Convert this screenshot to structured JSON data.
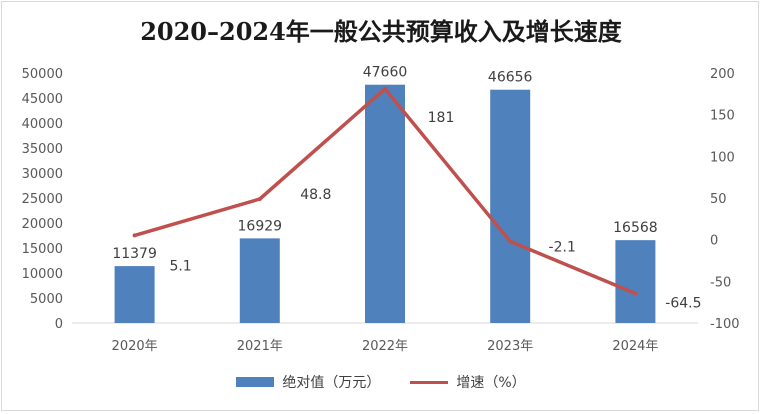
{
  "chart_data": {
    "type": "bar",
    "title": "2020–2024年一般公共预算收入及增长速度",
    "categories": [
      "2020年",
      "2021年",
      "2022年",
      "2023年",
      "2024年"
    ],
    "series": [
      {
        "name": "绝对值（万元）",
        "type": "bar",
        "axis": "left",
        "color": "#4f81bd",
        "values": [
          11379,
          16929,
          47660,
          46656,
          16568
        ],
        "labels": [
          "11379",
          "16929",
          "47660",
          "46656",
          "16568"
        ]
      },
      {
        "name": "增速（%）",
        "type": "line",
        "axis": "right",
        "color": "#c0504d",
        "values": [
          5.1,
          48.8,
          181,
          -2.1,
          -64.5
        ],
        "labels": [
          "5.1",
          "48.8",
          "181",
          "-2.1",
          "-64.5"
        ]
      }
    ],
    "y_left": {
      "ylim": [
        0,
        50000
      ],
      "ticks": [
        "0",
        "5000",
        "10000",
        "15000",
        "20000",
        "25000",
        "30000",
        "35000",
        "40000",
        "45000",
        "50000"
      ]
    },
    "y_right": {
      "ylim": [
        -100,
        200
      ],
      "ticks": [
        "-100",
        "-50",
        "0",
        "50",
        "100",
        "150",
        "200"
      ]
    },
    "grid": false,
    "legend": "bottom"
  }
}
